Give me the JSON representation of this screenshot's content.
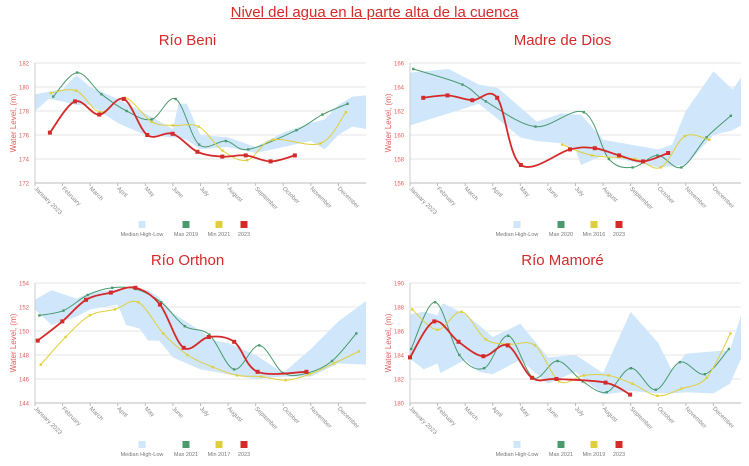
{
  "title": "Nivel del agua en la parte alta de la cuenca",
  "colors": {
    "band": "#cfe6fb",
    "max": "#4a9a6e",
    "min": "#e0cf3c",
    "current": "#d42a2a",
    "axis_title": "#e06060"
  },
  "chart_data": [
    {
      "type": "line",
      "title": "Río Beni",
      "ylabel": "Water Level, (m)",
      "ylim": [
        172,
        182
      ],
      "yticks": [
        172,
        174,
        176,
        178,
        180,
        182
      ],
      "months": [
        "January 2023",
        "February",
        "March",
        "April",
        "May",
        "June",
        "July",
        "August",
        "September",
        "October",
        "November",
        "December"
      ],
      "legend": [
        "Median High-Low",
        "Max 2019",
        "Min 2021",
        "2023"
      ],
      "band": {
        "x": [
          0,
          0.5,
          1,
          1.5,
          2,
          3,
          4,
          5,
          5.2,
          5.5,
          6,
          7,
          8,
          9,
          10,
          10.5,
          11,
          11.5,
          12
        ],
        "high": [
          179.4,
          179.6,
          179.8,
          181,
          180,
          179,
          177.8,
          176.5,
          178.6,
          178.6,
          176,
          175.8,
          175,
          176.2,
          177,
          177.3,
          178.5,
          179.2,
          179.3
        ],
        "low": [
          178,
          179,
          178.8,
          178.5,
          178.5,
          177,
          176,
          175.8,
          175.8,
          175.6,
          174.8,
          175,
          174.5,
          175,
          175.5,
          174.8,
          176,
          176.7,
          176.5
        ]
      },
      "series": [
        {
          "name": "Max 2019",
          "x": [
            0.66,
            1.53,
            2.41,
            3.32,
            4.23,
            5.1,
            5.95,
            6.92,
            7.73,
            9.48,
            10.42,
            11.33
          ],
          "y": [
            179.2,
            181.2,
            179.4,
            178,
            177.3,
            179,
            175.2,
            175.5,
            174.8,
            176.4,
            177.7,
            178.6
          ]
        },
        {
          "name": "Min 2021",
          "x": [
            0.57,
            1.49,
            2.36,
            3.26,
            4.23,
            4.99,
            5.93,
            6.8,
            7.69,
            8.61,
            10.35,
            11.27
          ],
          "y": [
            179.5,
            179.7,
            177.9,
            179.1,
            177.1,
            176.8,
            176.7,
            174.7,
            173.9,
            175.6,
            175.3,
            177.9
          ]
        },
        {
          "name": "2023",
          "x": [
            0.54,
            1.45,
            2.33,
            3.22,
            4.07,
            4.99,
            5.89,
            6.79,
            7.64,
            8.54,
            9.42
          ],
          "y": [
            176.2,
            178.8,
            177.7,
            179,
            176,
            176.1,
            174.6,
            174.2,
            174.3,
            173.8,
            174.3
          ]
        }
      ]
    },
    {
      "type": "line",
      "title": "Madre de Dios",
      "ylabel": "Water Level, (m)",
      "ylim": [
        156,
        166
      ],
      "yticks": [
        156,
        158,
        160,
        162,
        164,
        166
      ],
      "months": [
        "January 2023",
        "February",
        "March",
        "April",
        "May",
        "June",
        "July",
        "August",
        "September",
        "October",
        "November",
        "December"
      ],
      "legend": [
        "Median High-Low",
        "Max 2020",
        "Min 2016",
        "2023"
      ],
      "band": {
        "x": [
          0,
          1.4,
          2.5,
          3.2,
          4,
          4.6,
          5.5,
          6,
          6.2,
          7,
          8,
          9,
          9.5,
          10,
          11,
          11.7,
          12
        ],
        "high": [
          165.2,
          165.5,
          164.2,
          163.9,
          162.3,
          161.1,
          161.8,
          161.7,
          161.7,
          159.6,
          159.2,
          158.8,
          159.2,
          162,
          165.3,
          163.8,
          164.8
        ],
        "low": [
          160.8,
          161.8,
          162.6,
          161.3,
          159.8,
          159.5,
          159.3,
          158.8,
          157.5,
          158.3,
          157.8,
          157.3,
          157.4,
          157.5,
          160,
          160.4,
          160.8
        ]
      },
      "series": [
        {
          "name": "Max 2020",
          "x": [
            0.12,
            1.9,
            2.75,
            4.55,
            6.3,
            7.21,
            8.07,
            8.97,
            9.84,
            10.75,
            11.63
          ],
          "y": [
            165.5,
            164.2,
            162.8,
            160.7,
            161.9,
            158,
            157.3,
            158.3,
            157.3,
            159.8,
            161.6
          ]
        },
        {
          "name": "Min 2016",
          "x": [
            5.52,
            6.6,
            8.15,
            9.09,
            9.96,
            10.85
          ],
          "y": [
            159.2,
            158.3,
            158,
            157.3,
            159.9,
            159.6
          ]
        },
        {
          "name": "2023",
          "x": [
            0.48,
            1.36,
            2.26,
            3.16,
            4.02,
            5.8,
            6.7,
            7.58,
            8.45,
            9.36
          ],
          "y": [
            163.1,
            163.3,
            162.9,
            163.1,
            157.5,
            158.8,
            158.9,
            158.3,
            157.8,
            158.5
          ]
        }
      ]
    },
    {
      "type": "line",
      "title": "Río Orthon",
      "ylabel": "Water Level, (m)",
      "ylim": [
        144,
        154
      ],
      "yticks": [
        144,
        146,
        148,
        150,
        152,
        154
      ],
      "months": [
        "January 2023",
        "February",
        "March",
        "April",
        "May",
        "June",
        "July",
        "August",
        "September",
        "October",
        "November",
        "December"
      ],
      "legend": [
        "Median High-Low",
        "Max 2021",
        "Min 2017",
        "2023"
      ],
      "band": {
        "x": [
          0,
          0.6,
          1.5,
          2,
          3,
          3.3,
          3.8,
          4.1,
          4.5,
          5,
          6,
          6.5,
          7,
          8,
          9,
          10,
          11,
          12
        ],
        "high": [
          152.6,
          153.4,
          152.7,
          153.2,
          153.5,
          153.5,
          153.5,
          153.4,
          152.8,
          151.5,
          150,
          149.2,
          149,
          148,
          146.5,
          148.5,
          150.8,
          152.5
        ],
        "low": [
          151.8,
          150.5,
          151.2,
          151.8,
          152.2,
          150.5,
          150.2,
          149.2,
          149.2,
          147.8,
          146.8,
          146.6,
          146.4,
          146,
          146.2,
          146.2,
          147.3,
          147.2
        ]
      },
      "series": [
        {
          "name": "Max 2021",
          "x": [
            0.16,
            1.03,
            1.91,
            2.8,
            3.66,
            4.57,
            5.43,
            6.32,
            7.22,
            8.13,
            9.0,
            9.88,
            10.77,
            11.65
          ],
          "y": [
            151.3,
            151.7,
            153,
            153.6,
            153.5,
            152.4,
            150.4,
            149.7,
            146.8,
            148.8,
            146.5,
            146.5,
            147.5,
            149.8
          ]
        },
        {
          "name": "Min 2017",
          "x": [
            0.21,
            1.11,
            1.99,
            2.9,
            3.74,
            4.65,
            5.53,
            6.44,
            7.32,
            8.21,
            9.09,
            9.96,
            10.83,
            11.74
          ],
          "y": [
            147.2,
            149.5,
            151.3,
            151.8,
            152.4,
            149.8,
            148,
            147,
            146.3,
            146.2,
            145.9,
            146.4,
            147.3,
            148.3
          ]
        },
        {
          "name": "2023",
          "x": [
            0.1,
            0.99,
            1.85,
            2.75,
            3.64,
            4.53,
            5.39,
            6.3,
            7.22,
            8.07,
            9.84
          ],
          "y": [
            149.2,
            150.8,
            152.6,
            153.2,
            153.6,
            152.2,
            148.6,
            149.5,
            149.1,
            146.6,
            146.6
          ]
        }
      ]
    },
    {
      "type": "line",
      "title": "Río Mamoré",
      "ylabel": "Water Level, (m)",
      "ylim": [
        180,
        190
      ],
      "yticks": [
        180,
        182,
        184,
        186,
        188,
        190
      ],
      "months": [
        "January 2023",
        "February",
        "March",
        "April",
        "May",
        "June",
        "July",
        "August",
        "September",
        "October",
        "November",
        "December"
      ],
      "legend": [
        "Median High-Low",
        "Max 2021",
        "Min 2019",
        "2023"
      ],
      "band": {
        "x": [
          0,
          0.5,
          1,
          1.1,
          1.2,
          2,
          2.5,
          3,
          4,
          5,
          6,
          7,
          8,
          9,
          9.5,
          10,
          11,
          11.6,
          12
        ],
        "high": [
          187.4,
          187.6,
          187.3,
          188,
          188.3,
          187.4,
          186.5,
          185.5,
          186.6,
          183.8,
          184,
          182.5,
          187.6,
          185,
          182.7,
          184.1,
          184.3,
          184.4,
          187.3
        ],
        "low": [
          183.7,
          182.8,
          183.3,
          182.5,
          182.6,
          183.6,
          182.6,
          182.4,
          183.6,
          181.6,
          182.6,
          180.7,
          181,
          180.8,
          180.8,
          180.9,
          180.8,
          181.6,
          183.7
        ]
      },
      "series": [
        {
          "name": "Max 2021",
          "x": [
            0.04,
            0.91,
            1.79,
            2.69,
            3.56,
            4.47,
            5.35,
            6.26,
            7.13,
            8.01,
            8.91,
            9.78,
            10.69,
            11.56
          ],
          "y": [
            184.5,
            188.4,
            184,
            182.9,
            185.6,
            182.1,
            183.5,
            181.8,
            180.9,
            182.9,
            181.1,
            183.4,
            182.4,
            184.5
          ]
        },
        {
          "name": "Min 2019",
          "x": [
            0.08,
            0.99,
            1.87,
            2.75,
            3.62,
            4.53,
            5.41,
            6.3,
            7.19,
            8.07,
            8.97,
            9.84,
            10.75,
            11.62
          ],
          "y": [
            187.8,
            186.1,
            187.6,
            185.3,
            184.9,
            184.8,
            181.8,
            182.3,
            182.3,
            181.6,
            180.6,
            181.2,
            182.1,
            185.8
          ]
        },
        {
          "name": "2023",
          "x": [
            0,
            0.88,
            1.76,
            2.66,
            3.54,
            4.42,
            5.31,
            7.09,
            7.98
          ],
          "y": [
            183.8,
            186.8,
            185.1,
            183.9,
            184.8,
            182.1,
            182,
            181.7,
            180.7
          ]
        }
      ]
    }
  ]
}
